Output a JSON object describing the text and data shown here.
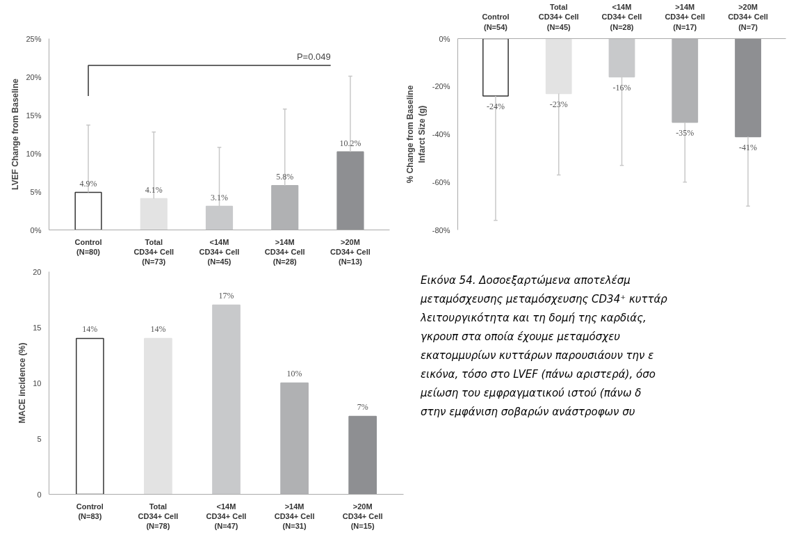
{
  "chart_data": [
    {
      "type": "bar",
      "ylabel": "LVEF Change from Baseline",
      "categories": [
        "Control\n(N=80)",
        "Total\nCD34+ Cell\n(N=73)",
        "<14M\nCD34+ Cell\n(N=45)",
        ">14M\nCD34+ Cell\n(N=28)",
        ">20M\nCD34+ Cell\n(N=13)"
      ],
      "values": [
        4.9,
        4.1,
        3.1,
        5.8,
        10.2
      ],
      "value_labels": [
        "4.9%",
        "4.1%",
        "3.1%",
        "5.8%",
        "10.2%"
      ],
      "errors": [
        [
          4.9,
          13.7
        ],
        [
          4.1,
          12.8
        ],
        [
          3.1,
          10.8
        ],
        [
          5.8,
          15.8
        ],
        [
          10.2,
          20.1
        ]
      ],
      "colors": [
        "#ffffff",
        "#e3e3e3",
        "#c8c9cb",
        "#b0b1b3",
        "#8e8f92"
      ],
      "ylim": [
        0,
        25
      ],
      "yticks": [
        {
          "value": 0,
          "label": "0%"
        },
        {
          "value": 5,
          "label": "5%"
        },
        {
          "value": 10,
          "label": "10%"
        },
        {
          "value": 15,
          "label": "15%"
        },
        {
          "value": 20,
          "label": "20%"
        },
        {
          "value": 25,
          "label": "25%"
        }
      ],
      "annotations": [
        "P=0.049"
      ]
    },
    {
      "type": "bar",
      "ylabel": "% Change from Baseline\nInfarct Size (g)",
      "categories": [
        "Control\n(N=54)",
        "Total\nCD34+ Cell\n(N=45)",
        "<14M\nCD34+ Cell\n(N=28)",
        ">14M\nCD34+ Cell\n(N=17)",
        ">20M\nCD34+ Cell\n(N=7)"
      ],
      "values": [
        -24,
        -23,
        -16,
        -35,
        -41
      ],
      "value_labels": [
        "-24%",
        "-23%",
        "-16%",
        "-35%",
        "-41%"
      ],
      "errors": [
        [
          -76,
          -24
        ],
        [
          -57,
          -23
        ],
        [
          -53,
          -16
        ],
        [
          -60,
          -35
        ],
        [
          -70,
          -41
        ]
      ],
      "colors": [
        "#ffffff",
        "#e3e3e3",
        "#c8c9cb",
        "#b0b1b3",
        "#8e8f92"
      ],
      "ylim": [
        -80,
        0
      ],
      "yticks": [
        {
          "value": -80,
          "label": "-80%"
        },
        {
          "value": -60,
          "label": "-60%"
        },
        {
          "value": -40,
          "label": "-40%"
        },
        {
          "value": -20,
          "label": "-20%"
        },
        {
          "value": 0,
          "label": "0%"
        }
      ]
    },
    {
      "type": "bar",
      "ylabel": "MACE incidence (%)",
      "categories": [
        "Control\n(N=83)",
        "Total\nCD34+ Cell\n(N=78)",
        "<14M\nCD34+ Cell\n(N=47)",
        ">14M\nCD34+ Cell\n(N=31)",
        ">20M\nCD34+ Cell\n(N=15)"
      ],
      "values": [
        14,
        14,
        17,
        10,
        7
      ],
      "value_labels": [
        "14%",
        "14%",
        "17%",
        "10%",
        "7%"
      ],
      "colors": [
        "#ffffff",
        "#e3e3e3",
        "#c8c9cb",
        "#b0b1b3",
        "#8e8f92"
      ],
      "ylim": [
        0,
        20
      ],
      "yticks": [
        0,
        5,
        10,
        15,
        20
      ]
    },
    {
      "type": "other",
      "annotations": [
        "Εικόνα 54. Δοσοεξαρτώμενα αποτελέσμ",
        "μεταμόσχευσης μεταμόσχευσης CD34⁺ κυττάρ",
        "λειτουργικότητα και τη δομή της καρδιάς,",
        "γκρουπ στα οποία έχουμε μεταμόσχευ",
        "εκατομμυρίων κυττάρων παρουσιάουν την ε",
        "εικόνα, τόσο στο LVEF (πάνω αριστερά), όσο",
        "μείωση του εμφραγματικού ιστού (πάνω δ",
        "στην εμφάνιση σοβαρών ανάστροφων συ"
      ]
    }
  ]
}
